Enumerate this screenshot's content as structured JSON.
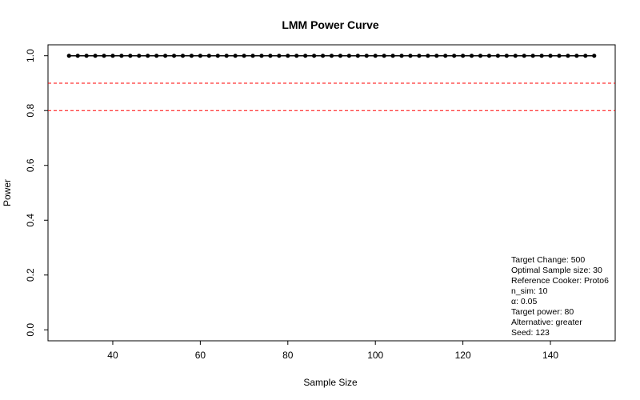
{
  "chart_data": {
    "type": "line",
    "title": "LMM Power Curve",
    "xlabel": "Sample Size",
    "ylabel": "Power",
    "xlim": [
      30,
      150
    ],
    "ylim": [
      0.0,
      1.0
    ],
    "x_ticks": [
      40,
      60,
      80,
      100,
      120,
      140
    ],
    "y_ticks": [
      0.0,
      0.2,
      0.4,
      0.6,
      0.8,
      1.0
    ],
    "x_tick_labels": [
      "40",
      "60",
      "80",
      "100",
      "120",
      "140"
    ],
    "y_tick_labels": [
      "0.0",
      "0.2",
      "0.4",
      "0.6",
      "0.8",
      "1.0"
    ],
    "grid": false,
    "series": [
      {
        "x": [
          30,
          32,
          34,
          36,
          38,
          40,
          42,
          44,
          46,
          48,
          50,
          52,
          54,
          56,
          58,
          60,
          62,
          64,
          66,
          68,
          70,
          72,
          74,
          76,
          78,
          80,
          82,
          84,
          86,
          88,
          90,
          92,
          94,
          96,
          98,
          100,
          102,
          104,
          106,
          108,
          110,
          112,
          114,
          116,
          118,
          120,
          122,
          124,
          126,
          128,
          130,
          132,
          134,
          136,
          138,
          140,
          142,
          144,
          146,
          148,
          150
        ],
        "values": [
          1,
          1,
          1,
          1,
          1,
          1,
          1,
          1,
          1,
          1,
          1,
          1,
          1,
          1,
          1,
          1,
          1,
          1,
          1,
          1,
          1,
          1,
          1,
          1,
          1,
          1,
          1,
          1,
          1,
          1,
          1,
          1,
          1,
          1,
          1,
          1,
          1,
          1,
          1,
          1,
          1,
          1,
          1,
          1,
          1,
          1,
          1,
          1,
          1,
          1,
          1,
          1,
          1,
          1,
          1,
          1,
          1,
          1,
          1,
          1,
          1
        ],
        "color": "#000000"
      }
    ],
    "reference_lines": [
      {
        "y": 0.9,
        "color": "#ff0000",
        "style": "dashed"
      },
      {
        "y": 0.8,
        "color": "#ff0000",
        "style": "dashed"
      }
    ],
    "annotations": [
      "Target Change: 500",
      "Optimal Sample size: 30",
      "Reference Cooker: Proto6",
      "n_sim: 10",
      "α: 0.05",
      "Target power: 80",
      "Alternative: greater",
      "Seed: 123"
    ],
    "annotation_placement": "bottom-right"
  }
}
